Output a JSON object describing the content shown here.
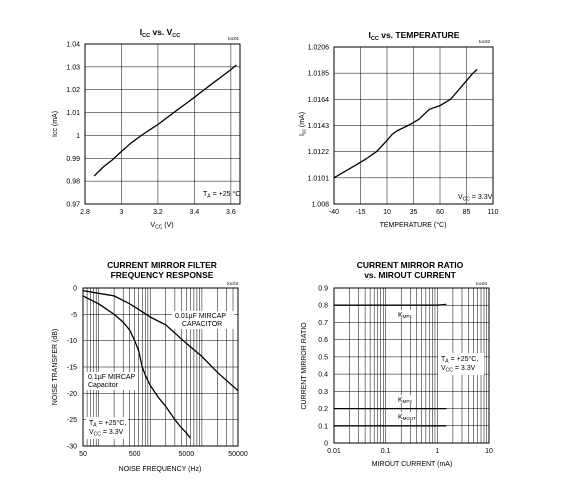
{
  "chart_data": [
    {
      "type": "line",
      "code": "toc01",
      "title_main": "I",
      "title_sub1": "CC",
      "title_mid": " vs. V",
      "title_sub2": "CC",
      "xlabel_main": "V",
      "xlabel_sub": "CC",
      "xlabel_unit": " (V)",
      "ylabel": "Icc (mA)",
      "x_ticks": [
        "2.8",
        "3",
        "3.2",
        "3.4",
        "3.6"
      ],
      "y_ticks": [
        "1.04",
        "1.03",
        "1.02",
        "1.01",
        "1",
        "0.99",
        "0.98",
        "0.97"
      ],
      "xlim": [
        2.8,
        3.65
      ],
      "ylim": [
        0.97,
        1.04
      ],
      "annotation": {
        "main": "T",
        "sub": "A",
        "rest": " = +25 °C"
      },
      "series": [
        {
          "x": [
            2.85,
            2.9,
            2.95,
            3.0,
            3.05,
            3.1,
            3.15,
            3.2,
            3.25,
            3.3,
            3.35,
            3.4,
            3.45,
            3.5,
            3.55,
            3.6,
            3.63
          ],
          "y": [
            0.9822,
            0.9862,
            0.9893,
            0.993,
            0.9965,
            0.9995,
            1.0022,
            1.0048,
            1.0078,
            1.0108,
            1.0137,
            1.0167,
            1.0198,
            1.0228,
            1.0258,
            1.0288,
            1.0308
          ]
        }
      ]
    },
    {
      "type": "line",
      "code": "toc02",
      "title_main": "I",
      "title_sub1": "CC",
      "title_rest": " vs. TEMPERATURE",
      "xlabel": "TEMPERATURE (°C)",
      "ylabel_main": "I",
      "ylabel_sub": "cc",
      "ylabel_unit": " (mA)",
      "x_ticks": [
        "-40",
        "-15",
        "10",
        "35",
        "60",
        "85",
        "110"
      ],
      "y_ticks": [
        "1.0206",
        "1.0185",
        "1.0164",
        "1.0143",
        "1.0122",
        "1.0101",
        "1.008"
      ],
      "xlim": [
        -40,
        110
      ],
      "ylim": [
        1.008,
        1.0206
      ],
      "annotation": {
        "main": "V",
        "sub": "CC",
        "rest": " = 3.3V"
      },
      "series": [
        {
          "x": [
            -40,
            -30,
            -20,
            -10,
            0,
            10,
            15,
            20,
            30,
            40,
            45,
            50,
            60,
            70,
            80,
            90,
            95
          ],
          "y": [
            1.0101,
            1.0106,
            1.0111,
            1.0116,
            1.0122,
            1.0131,
            1.0136,
            1.0139,
            1.0143,
            1.0148,
            1.0152,
            1.0156,
            1.0159,
            1.0164,
            1.0174,
            1.0184,
            1.0188
          ]
        }
      ]
    },
    {
      "type": "line",
      "code": "toc03",
      "title_line1": "CURRENT MIRROR FILTER",
      "title_line2": "FREQUENCY RESPONSE",
      "xlabel": "NOISE FREQUENCY (Hz)",
      "ylabel": "NOISE TRANSFER (dB)",
      "x_scale": "log",
      "x_ticks": [
        "50",
        "500",
        "5000",
        "50000"
      ],
      "y_ticks": [
        "0",
        "-5",
        "-10",
        "-15",
        "-20",
        "-25",
        "-30"
      ],
      "xlim": [
        50,
        50000
      ],
      "ylim": [
        -30,
        0
      ],
      "labels": [
        {
          "line1": "0.01µF MIRCAP",
          "line2": "CAPACITOR"
        },
        {
          "line1": "0.1µF MIRCAP",
          "line2": "Capacitor"
        }
      ],
      "annotation": {
        "line1_main": "T",
        "line1_sub": "A",
        "line1_rest": " = +25°C,",
        "line2_main": "V",
        "line2_sub": "CC",
        "line2_rest": " = 3.3V"
      },
      "series": [
        {
          "x": [
            50,
            100,
            200,
            400,
            700,
            1000,
            2000,
            5000,
            10000,
            20000,
            50000
          ],
          "y": [
            -0.5,
            -1,
            -1.5,
            -3,
            -4.5,
            -5.5,
            -7,
            -10.5,
            -13,
            -16,
            -19.5
          ]
        },
        {
          "x": [
            50,
            100,
            200,
            300,
            400,
            500,
            600,
            700,
            800,
            1000,
            1500,
            2000,
            3000,
            4000,
            5000,
            6000
          ],
          "y": [
            -1.5,
            -3,
            -5,
            -6.5,
            -8,
            -10,
            -12,
            -15,
            -16.5,
            -18.5,
            -21,
            -22.5,
            -25,
            -26.5,
            -27.5,
            -28.5
          ]
        }
      ]
    },
    {
      "type": "line",
      "code": "toc04",
      "title_line1": "CURRENT MIRROR RATIO",
      "title_line2": "vs.  MIROUT CURRENT",
      "xlabel": "MIROUT CURRENT (mA)",
      "ylabel": "CURRENT MIRROR RATIO",
      "x_scale": "log",
      "x_ticks": [
        "0.01",
        "0.1",
        "1",
        "10"
      ],
      "y_ticks": [
        "0.9",
        "0.8",
        "0.7",
        "0.6",
        "0.5",
        "0.4",
        "0.3",
        "0.2",
        "0.1",
        "0"
      ],
      "xlim": [
        0.01,
        10
      ],
      "ylim": [
        0,
        0.9
      ],
      "annotation": {
        "line1_main": "T",
        "line1_sub": "A",
        "line1_rest": " = +25°C,",
        "line2_main": "V",
        "line2_sub": "CC",
        "line2_rest": " = 3.3V"
      },
      "series": [
        {
          "main": "K",
          "sub": "MP1",
          "x": [
            0.01,
            0.1,
            1,
            1.5
          ],
          "y": [
            0.8,
            0.8,
            0.8,
            0.805
          ]
        },
        {
          "main": "K",
          "sub": "MP2",
          "x": [
            0.01,
            0.1,
            1,
            1.5
          ],
          "y": [
            0.2,
            0.2,
            0.2,
            0.2
          ]
        },
        {
          "main": "K",
          "sub": "MOUT",
          "x": [
            0.01,
            0.1,
            1,
            1.5
          ],
          "y": [
            0.1,
            0.1,
            0.1,
            0.1
          ]
        }
      ]
    }
  ]
}
